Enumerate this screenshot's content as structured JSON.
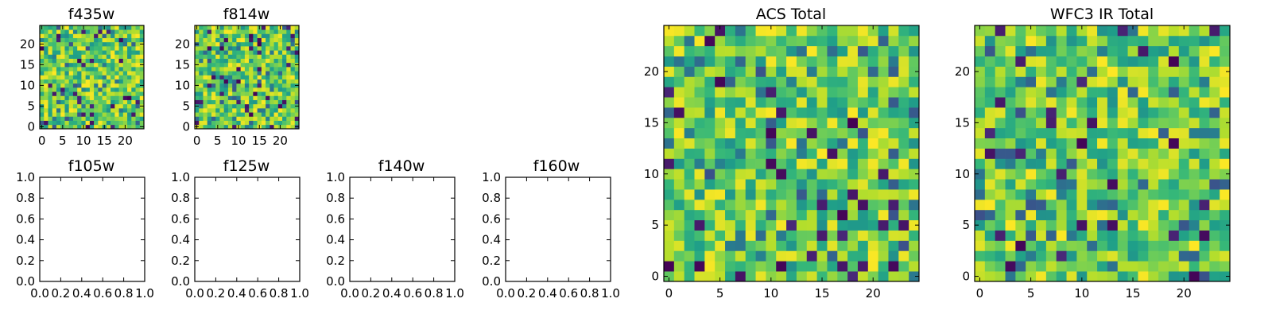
{
  "chart_data": [
    {
      "type": "heatmap",
      "title": "f435w",
      "xlim": [
        -0.5,
        24.5
      ],
      "ylim": [
        -0.5,
        24.5
      ],
      "xticks": [
        0,
        5,
        10,
        15,
        20
      ],
      "yticks": [
        0,
        5,
        10,
        15,
        20
      ],
      "grid": false,
      "colormap": "viridis",
      "shape": [
        25,
        25
      ]
    },
    {
      "type": "heatmap",
      "title": "f814w",
      "xlim": [
        -0.5,
        24.5
      ],
      "ylim": [
        -0.5,
        24.5
      ],
      "xticks": [
        0,
        5,
        10,
        15,
        20
      ],
      "yticks": [
        0,
        5,
        10,
        15,
        20
      ],
      "grid": false,
      "colormap": "viridis",
      "shape": [
        25,
        25
      ]
    },
    {
      "type": "heatmap",
      "title": "f105w",
      "xlim": [
        0,
        1
      ],
      "ylim": [
        0,
        1
      ],
      "xticks": [
        "0.0",
        "0.2",
        "0.4",
        "0.6",
        "0.8",
        "1.0"
      ],
      "yticks": [
        "0.0",
        "0.2",
        "0.4",
        "0.6",
        "0.8",
        "1.0"
      ],
      "grid": false,
      "empty": true
    },
    {
      "type": "heatmap",
      "title": "f125w",
      "xlim": [
        0,
        1
      ],
      "ylim": [
        0,
        1
      ],
      "xticks": [
        "0.0",
        "0.2",
        "0.4",
        "0.6",
        "0.8",
        "1.0"
      ],
      "yticks": [
        "0.0",
        "0.2",
        "0.4",
        "0.6",
        "0.8",
        "1.0"
      ],
      "grid": false,
      "empty": true
    },
    {
      "type": "heatmap",
      "title": "f140w",
      "xlim": [
        0,
        1
      ],
      "ylim": [
        0,
        1
      ],
      "xticks": [
        "0.0",
        "0.2",
        "0.4",
        "0.6",
        "0.8",
        "1.0"
      ],
      "yticks": [
        "0.0",
        "0.2",
        "0.4",
        "0.6",
        "0.8",
        "1.0"
      ],
      "grid": false,
      "empty": true
    },
    {
      "type": "heatmap",
      "title": "f160w",
      "xlim": [
        0,
        1
      ],
      "ylim": [
        0,
        1
      ],
      "xticks": [
        "0.0",
        "0.2",
        "0.4",
        "0.6",
        "0.8",
        "1.0"
      ],
      "yticks": [
        "0.0",
        "0.2",
        "0.4",
        "0.6",
        "0.8",
        "1.0"
      ],
      "grid": false,
      "empty": true
    },
    {
      "type": "heatmap",
      "title": "ACS Total",
      "xlim": [
        -0.5,
        24.5
      ],
      "ylim": [
        -0.5,
        24.5
      ],
      "xticks": [
        0,
        5,
        10,
        15,
        20
      ],
      "yticks": [
        0,
        5,
        10,
        15,
        20
      ],
      "grid": false,
      "colormap": "viridis",
      "shape": [
        25,
        25
      ]
    },
    {
      "type": "heatmap",
      "title": "WFC3 IR Total",
      "xlim": [
        -0.5,
        24.5
      ],
      "ylim": [
        -0.5,
        24.5
      ],
      "xticks": [
        0,
        5,
        10,
        15,
        20
      ],
      "yticks": [
        0,
        5,
        10,
        15,
        20
      ],
      "grid": false,
      "colormap": "viridis",
      "shape": [
        25,
        25
      ]
    }
  ],
  "colors": {
    "frame": "#000000",
    "background": "#ffffff"
  }
}
